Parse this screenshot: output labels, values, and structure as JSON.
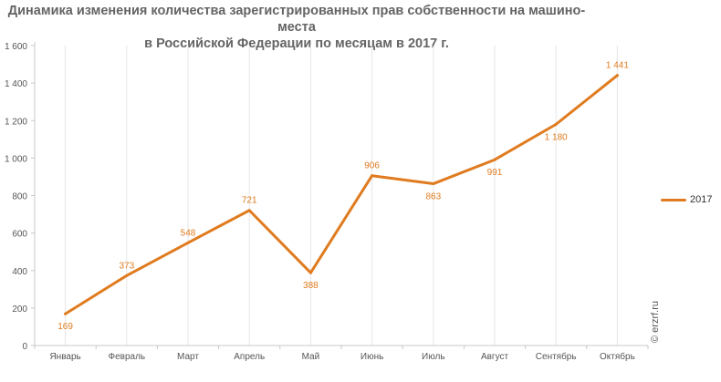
{
  "chart_data": {
    "type": "line",
    "title_lines": [
      "Динамика изменения количества зарегистрированных прав собственности на машино-места",
      "в Российской Федерации по месяцам в 2017 г."
    ],
    "categories": [
      "Январь",
      "Февраль",
      "Март",
      "Апрель",
      "Май",
      "Июнь",
      "Июль",
      "Август",
      "Сентябрь",
      "Октябрь"
    ],
    "series": [
      {
        "name": "2017",
        "color": "#e07b1f",
        "values": [
          169,
          373,
          548,
          721,
          388,
          906,
          863,
          991,
          1180,
          1441
        ],
        "labels": [
          "169",
          "373",
          "548",
          "721",
          "388",
          "906",
          "863",
          "991",
          "1 180",
          "1 441"
        ]
      }
    ],
    "yticks": [
      0,
      200,
      400,
      600,
      800,
      1000,
      1200,
      1400,
      1600
    ],
    "ytick_labels": [
      "0",
      "200",
      "400",
      "600",
      "800",
      "1 000",
      "1 200",
      "1 400",
      "1 600"
    ],
    "ylim": [
      0,
      1600
    ],
    "xlabel": "",
    "ylabel": "",
    "grid": "vertical",
    "legend_position": "right"
  },
  "watermark": "© erzrf.ru"
}
